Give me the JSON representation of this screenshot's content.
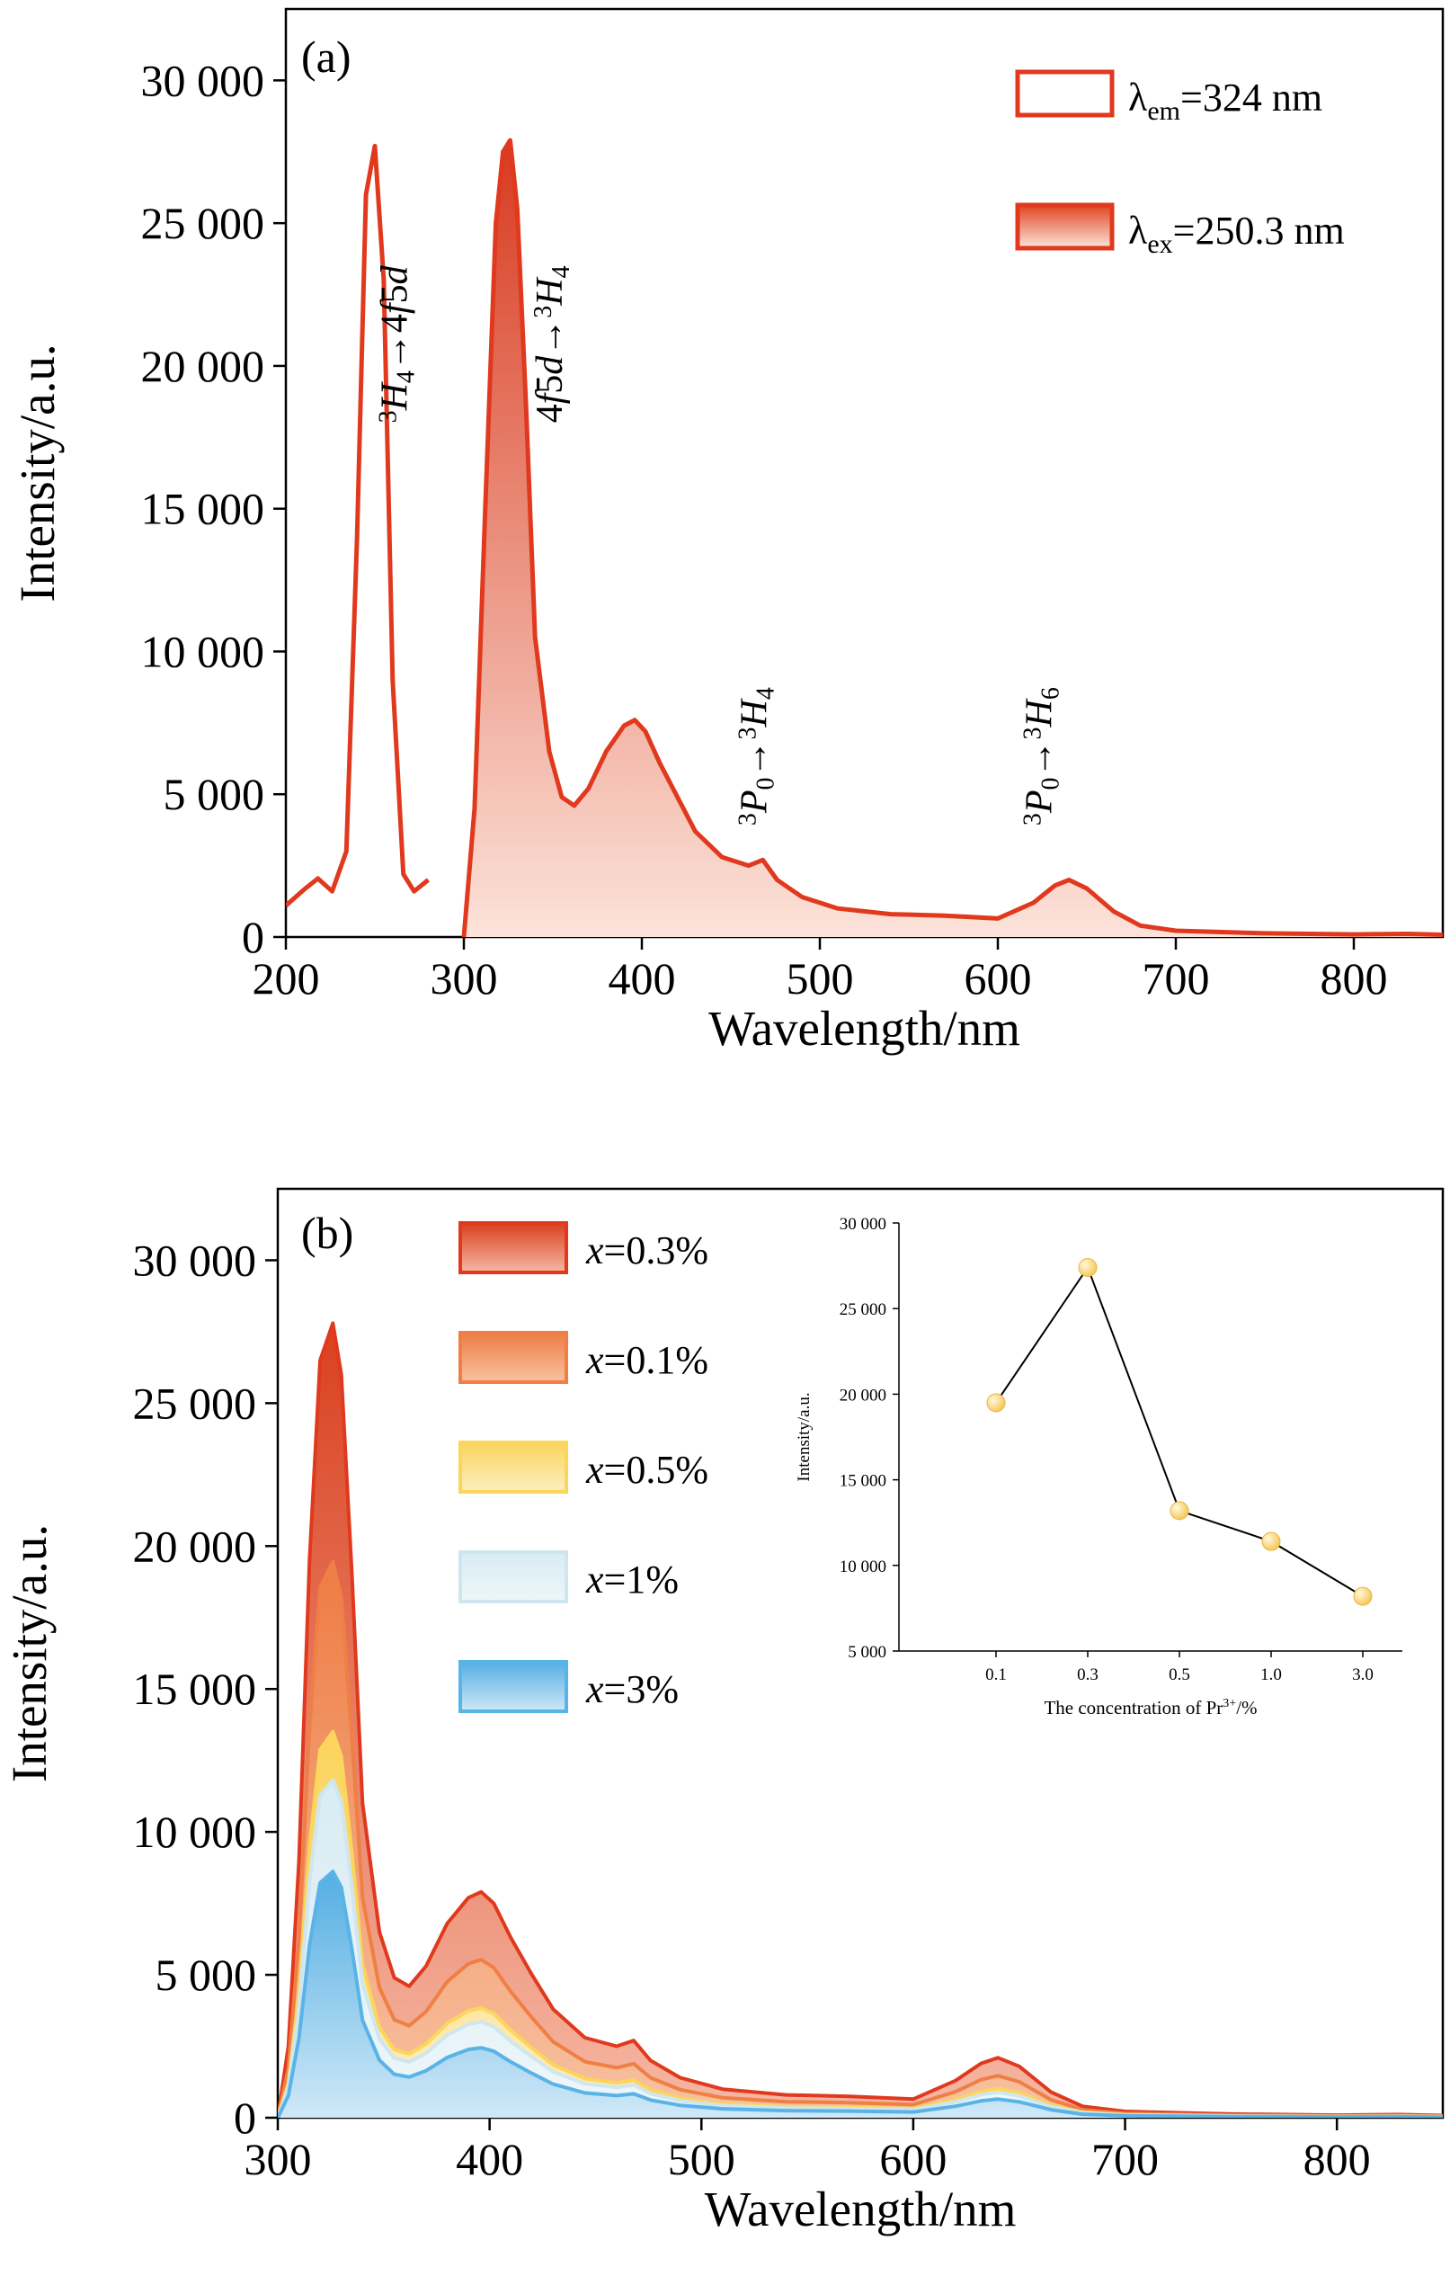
{
  "chart_data": [
    {
      "panel": "(a)",
      "type": "area",
      "xlabel": "Wavelength/nm",
      "ylabel": "Intensity/a.u.",
      "xlim": [
        200,
        850
      ],
      "ylim": [
        0,
        32500
      ],
      "x_ticks": [
        200,
        300,
        400,
        500,
        600,
        700,
        800
      ],
      "y_ticks": [
        0,
        5000,
        10000,
        15000,
        20000,
        25000,
        30000
      ],
      "y_tick_labels": [
        "0",
        "5 000",
        "10 000",
        "15 000",
        "20 000",
        "25 000",
        "30 000"
      ],
      "legend": {
        "position": "top-right",
        "entries": [
          {
            "sym": "λ",
            "sub": "em",
            "rest": "=324 nm",
            "style": "outline"
          },
          {
            "sym": "λ",
            "sub": "ex",
            "rest": "=250.3 nm",
            "style": "filled"
          }
        ]
      },
      "annotations": [
        {
          "label_html": "<tspan font-size='28' dy='-12'>3</tspan><tspan font-style='italic' dy='12'>H</tspan><tspan font-size='28' dy='8'>4</tspan><tspan dy='-8'>→4</tspan><tspan font-style='italic'>f</tspan>5<tspan font-style='italic'>d</tspan>",
          "x": 268,
          "y": 18000
        },
        {
          "label_html": "4<tspan font-style='italic'>f</tspan>5<tspan font-style='italic'>d</tspan>→<tspan font-size='28' dy='-12'>3</tspan><tspan font-style='italic' dy='12'>H</tspan><tspan font-size='28' dy='8'>4</tspan>",
          "x": 355,
          "y": 18000
        },
        {
          "label_html": "<tspan font-size='28' dy='-12'>3</tspan><tspan font-style='italic' dy='12'>P</tspan><tspan font-size='28' dy='8'>0</tspan><tspan dy='-8'>→</tspan><tspan font-size='28' dy='-12'>3</tspan><tspan font-style='italic' dy='12'>H</tspan><tspan font-size='28' dy='8'>4</tspan>",
          "x": 470,
          "y": 3900
        },
        {
          "label_html": "<tspan font-size='28' dy='-12'>3</tspan><tspan font-style='italic' dy='12'>P</tspan><tspan font-size='28' dy='8'>0</tspan><tspan dy='-8'>→</tspan><tspan font-size='28' dy='-12'>3</tspan><tspan font-style='italic' dy='12'>H</tspan><tspan font-size='28' dy='8'>6</tspan>",
          "x": 630,
          "y": 3900
        }
      ],
      "series": [
        {
          "name": "λem=324 nm",
          "style": "line",
          "color": "#e0391d",
          "x": [
            200,
            210,
            218,
            226,
            234,
            240,
            245,
            250,
            255,
            260,
            266,
            272,
            280
          ],
          "y": [
            1100,
            1650,
            2050,
            1600,
            3000,
            14000,
            26000,
            27700,
            23000,
            9000,
            2200,
            1600,
            2000
          ]
        },
        {
          "name": "λex=250.3 nm",
          "style": "filled",
          "color": "#e0391d",
          "fill_top": "#d83a1f",
          "fill_bottom": "#fce3da",
          "x": [
            300,
            306,
            312,
            318,
            322,
            326,
            330,
            335,
            340,
            348,
            355,
            362,
            370,
            380,
            390,
            396,
            402,
            410,
            420,
            430,
            445,
            460,
            468,
            476,
            490,
            510,
            540,
            570,
            600,
            620,
            632,
            640,
            650,
            665,
            680,
            700,
            750,
            800,
            830,
            850
          ],
          "y": [
            0,
            4500,
            15000,
            25000,
            27500,
            27900,
            25500,
            18500,
            10500,
            6500,
            4900,
            4600,
            5200,
            6500,
            7400,
            7600,
            7200,
            6100,
            4900,
            3700,
            2800,
            2500,
            2700,
            2000,
            1400,
            1000,
            800,
            750,
            650,
            1200,
            1800,
            2000,
            1700,
            900,
            400,
            220,
            130,
            90,
            110,
            80
          ]
        }
      ]
    },
    {
      "panel": "(b)",
      "type": "area",
      "xlabel": "Wavelength/nm",
      "ylabel": "Intensity/a.u.",
      "xlim": [
        300,
        850
      ],
      "ylim": [
        0,
        32500
      ],
      "x_ticks": [
        300,
        400,
        500,
        600,
        700,
        800
      ],
      "y_ticks": [
        0,
        5000,
        10000,
        15000,
        20000,
        25000,
        30000
      ],
      "y_tick_labels": [
        "0",
        "5 000",
        "10 000",
        "15 000",
        "20 000",
        "25 000",
        "30 000"
      ],
      "x": [
        300,
        305,
        310,
        315,
        320,
        326,
        330,
        335,
        340,
        348,
        355,
        362,
        370,
        380,
        390,
        396,
        402,
        410,
        420,
        430,
        445,
        460,
        468,
        476,
        490,
        510,
        540,
        570,
        600,
        620,
        632,
        640,
        650,
        665,
        680,
        700,
        750,
        800,
        830,
        850
      ],
      "legend": {
        "position": "top-left",
        "entries": [
          {
            "var": "x",
            "rest": "=0.3%"
          },
          {
            "var": "x",
            "rest": "=0.1%"
          },
          {
            "var": "x",
            "rest": "=0.5%"
          },
          {
            "var": "x",
            "rest": "=1%"
          },
          {
            "var": "x",
            "rest": "=3%"
          }
        ]
      },
      "series": [
        {
          "name": "x=0.3%",
          "scale": 1.0,
          "color": "#e0391d",
          "fill_top": "#d9401f",
          "fill_bottom": "#f6b8a4",
          "values": [
            0,
            2500,
            9000,
            19500,
            26500,
            27800,
            26000,
            19000,
            11000,
            6500,
            4900,
            4600,
            5300,
            6800,
            7700,
            7900,
            7500,
            6300,
            5000,
            3800,
            2800,
            2500,
            2700,
            2000,
            1400,
            1000,
            800,
            750,
            650,
            1300,
            1900,
            2100,
            1800,
            900,
            400,
            220,
            130,
            90,
            110,
            80
          ]
        },
        {
          "name": "x=0.1%",
          "scale": 0.7,
          "color": "#ef7f45",
          "fill_top": "#ee7c44",
          "fill_bottom": "#f7c2a1"
        },
        {
          "name": "x=0.5%",
          "scale": 0.486,
          "color": "#fbd65a",
          "fill_top": "#fbd35b",
          "fill_bottom": "#fdefc2"
        },
        {
          "name": "x=1%",
          "scale": 0.425,
          "color": "#cfe6ef",
          "fill_top": "#d7ecf3",
          "fill_bottom": "#eef7fa"
        },
        {
          "name": "x=3%",
          "scale": 0.31,
          "color": "#5ab3e6",
          "fill_top": "#53aee3",
          "fill_bottom": "#cfe8f7"
        }
      ],
      "inset": {
        "type": "line",
        "xlabel": "The concentration of Pr",
        "xlabel_sup": "3+",
        "xlabel_tail": "/%",
        "ylabel": "Intensity/a.u.",
        "categories": [
          "0.1",
          "0.3",
          "0.5",
          "1.0",
          "3.0"
        ],
        "values": [
          19500,
          27400,
          13200,
          11400,
          8200
        ],
        "ylim": [
          5000,
          30000
        ],
        "y_ticks": [
          5000,
          10000,
          15000,
          20000,
          25000,
          30000
        ],
        "y_tick_labels": [
          "5 000",
          "10 000",
          "15 000",
          "20 000",
          "25 000",
          "30 000"
        ],
        "marker_color": "#f7c95c"
      }
    }
  ]
}
